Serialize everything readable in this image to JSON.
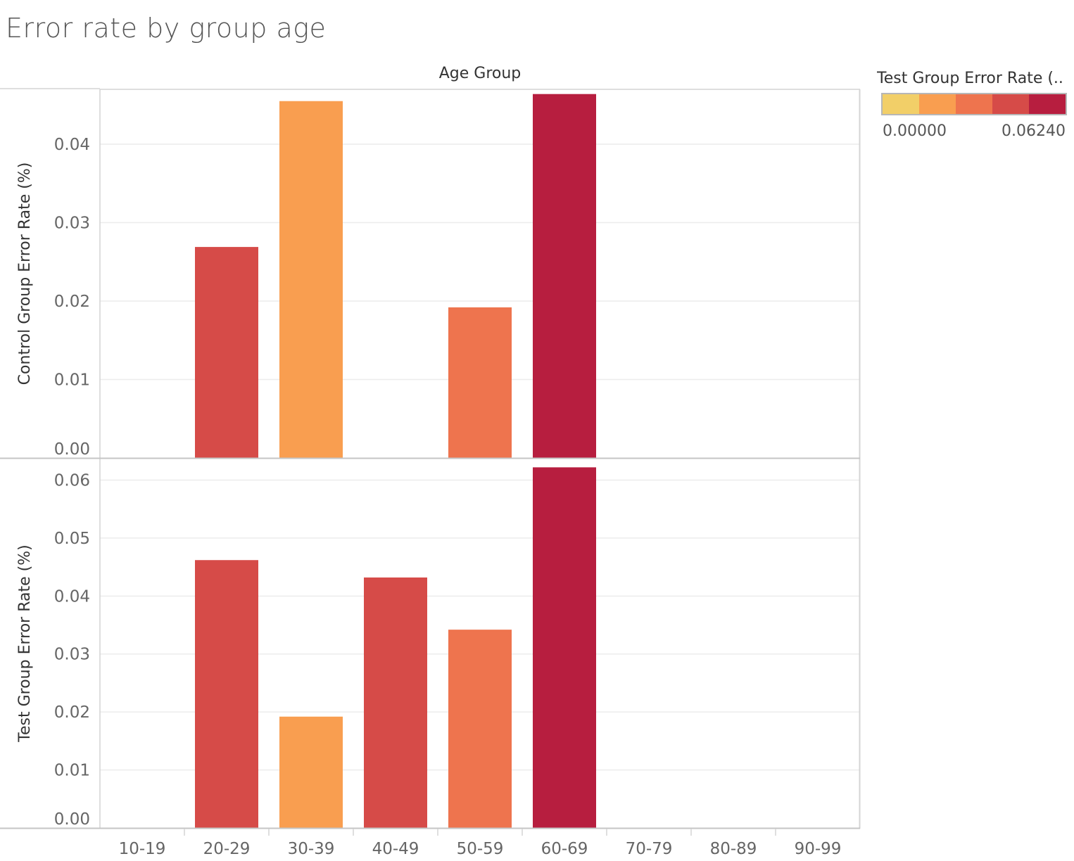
{
  "title": "Error rate by group age",
  "column_header": "Age Group",
  "legend": {
    "title": "Test Group Error Rate (..",
    "min_label": "0.00000",
    "max_label": "0.06240",
    "colors": [
      "#f2cf68",
      "#f99e50",
      "#ee744e",
      "#d64b48",
      "#b71e3f"
    ]
  },
  "chart_data": {
    "type": "bar",
    "categories": [
      "10-19",
      "20-29",
      "30-39",
      "40-49",
      "50-59",
      "60-69",
      "70-79",
      "80-89",
      "90-99"
    ],
    "xlabel": "Age Group",
    "color_by": "Test Group Error Rate (%)",
    "color_range": [
      0.0,
      0.0624
    ],
    "grid": true,
    "legend_position": "top-right",
    "panels": [
      {
        "ylabel": "Control Group Error Rate (%)",
        "ylim": [
          0,
          0.047
        ],
        "yticks": [
          "0.00",
          "0.01",
          "0.02",
          "0.03",
          "0.04"
        ],
        "values": [
          null,
          0.0269,
          0.0455,
          null,
          0.0192,
          0.0464,
          null,
          null,
          null
        ]
      },
      {
        "ylabel": "Test Group Error Rate (%)",
        "ylim": [
          0,
          0.0637
        ],
        "yticks": [
          "0.00",
          "0.01",
          "0.02",
          "0.03",
          "0.04",
          "0.05",
          "0.06"
        ],
        "values": [
          null,
          0.0462,
          0.0192,
          0.0432,
          0.0342,
          0.0622,
          null,
          null,
          null
        ]
      }
    ]
  }
}
